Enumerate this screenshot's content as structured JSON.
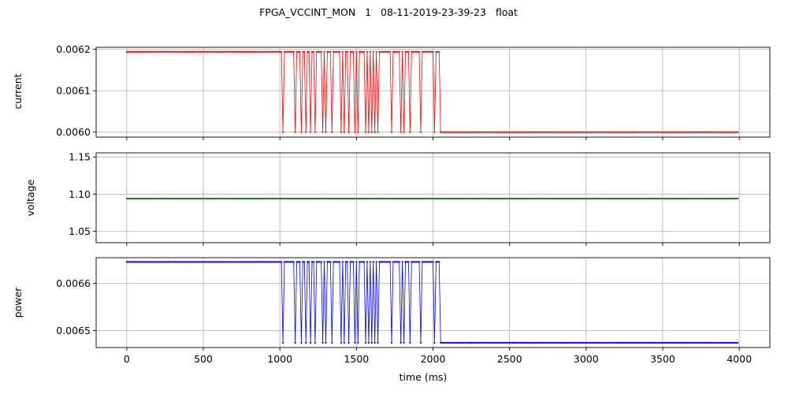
{
  "figure": {
    "suptitle": "FPGA_VCCINT_MON   1   08-11-2019-23-39-23   float",
    "xlabel": "time (ms)"
  },
  "chart_data": [
    {
      "type": "line",
      "panel": "current",
      "ylabel": "current",
      "color": "#ff0000",
      "xlim": [
        -200,
        4200
      ],
      "ylim": [
        0.005988,
        0.006205
      ],
      "yticks": [
        0.006,
        0.0061,
        0.0062
      ],
      "ytick_labels": [
        "0.0060",
        "0.0061",
        "0.0062"
      ],
      "xticks": [
        0,
        500,
        1000,
        1500,
        2000,
        2500,
        3000,
        3500,
        4000
      ],
      "grid": true,
      "marker": "dot",
      "high": 0.006194,
      "low": 0.006,
      "x_start": 0,
      "x_end": 3990,
      "sample_interval": 10,
      "low_dips": [
        1020,
        1100,
        1140,
        1170,
        1200,
        1230,
        1280,
        1300,
        1340,
        1400,
        1420,
        1450,
        1490,
        1510,
        1560,
        1580,
        1600,
        1620,
        1640,
        1730,
        1790,
        1810,
        1850,
        1920,
        2010,
        2050
      ],
      "low_after": 2060
    },
    {
      "type": "line",
      "panel": "voltage",
      "ylabel": "voltage",
      "color": "#008000",
      "xlim": [
        -200,
        4200
      ],
      "ylim": [
        1.0345,
        1.1555
      ],
      "yticks": [
        1.05,
        1.1,
        1.15
      ],
      "ytick_labels": [
        "1.05",
        "1.10",
        "1.15"
      ],
      "xticks": [
        0,
        500,
        1000,
        1500,
        2000,
        2500,
        3000,
        3500,
        4000
      ],
      "grid": true,
      "marker": "dot",
      "constant": 1.094,
      "x_start": 0,
      "x_end": 3990,
      "sample_interval": 10
    },
    {
      "type": "line",
      "panel": "power",
      "ylabel": "power",
      "color": "#0000ff",
      "xlim": [
        -200,
        4200
      ],
      "ylim": [
        0.006464,
        0.006654
      ],
      "yticks": [
        0.0065,
        0.0066
      ],
      "ytick_labels": [
        "0.0065",
        "0.0066"
      ],
      "xticks": [
        0,
        500,
        1000,
        1500,
        2000,
        2500,
        3000,
        3500,
        4000
      ],
      "xtick_labels": [
        "0",
        "500",
        "1000",
        "1500",
        "2000",
        "2500",
        "3000",
        "3500",
        "4000"
      ],
      "grid": true,
      "marker": "dot",
      "high": 0.006645,
      "low": 0.006474,
      "x_start": 0,
      "x_end": 3990,
      "sample_interval": 10,
      "low_dips": [
        1020,
        1100,
        1140,
        1170,
        1200,
        1230,
        1280,
        1300,
        1340,
        1400,
        1420,
        1450,
        1490,
        1510,
        1560,
        1580,
        1600,
        1620,
        1640,
        1730,
        1790,
        1810,
        1850,
        1920,
        2010,
        2050
      ],
      "low_after": 2060
    }
  ]
}
